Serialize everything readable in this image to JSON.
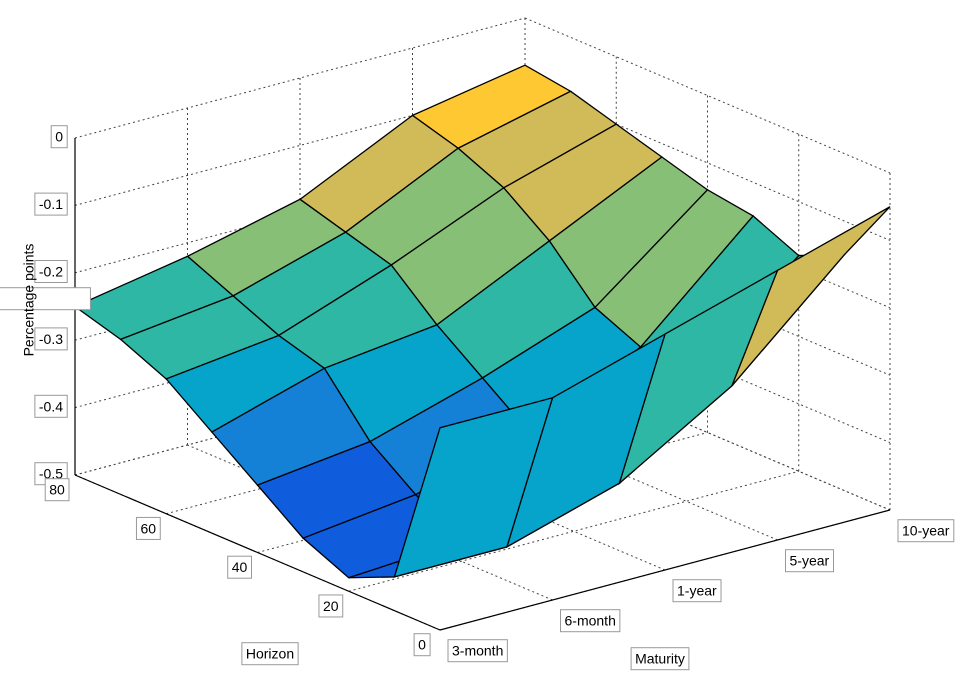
{
  "chart_data": {
    "type": "surface",
    "zlabel": "Percentage points",
    "ylabel": "Horizon",
    "xlabel": "Maturity",
    "x": [
      "3-month",
      "6-month",
      "1-year",
      "5-year",
      "10-year"
    ],
    "y": [
      0,
      10,
      20,
      30,
      40,
      50,
      60,
      70,
      80
    ],
    "values": [
      [
        -0.2,
        -0.2,
        -0.15,
        -0.1,
        -0.05
      ],
      [
        -0.45,
        -0.45,
        -0.4,
        -0.3,
        -0.15
      ],
      [
        -0.48,
        -0.47,
        -0.42,
        -0.32,
        -0.18
      ],
      [
        -0.45,
        -0.43,
        -0.38,
        -0.3,
        -0.15
      ],
      [
        -0.4,
        -0.38,
        -0.33,
        -0.27,
        -0.14
      ],
      [
        -0.35,
        -0.3,
        -0.28,
        -0.2,
        -0.12
      ],
      [
        -0.3,
        -0.28,
        -0.22,
        -0.15,
        -0.1
      ],
      [
        -0.27,
        -0.25,
        -0.2,
        -0.12,
        -0.08
      ],
      [
        -0.25,
        -0.22,
        -0.18,
        -0.1,
        -0.07
      ]
    ],
    "ylim": [
      0,
      80
    ],
    "yticks": [
      0,
      20,
      40,
      60,
      80
    ],
    "zlim": [
      -0.5,
      0
    ],
    "zticks": [
      0,
      -0.1,
      -0.2,
      -0.3,
      -0.4,
      -0.5
    ],
    "grid": true,
    "colormap": [
      "#352a87",
      "#0f5cdd",
      "#1481d6",
      "#06a4ca",
      "#2eb7a4",
      "#87bf77",
      "#d1bb59",
      "#fec832",
      "#f9fb0e"
    ]
  }
}
